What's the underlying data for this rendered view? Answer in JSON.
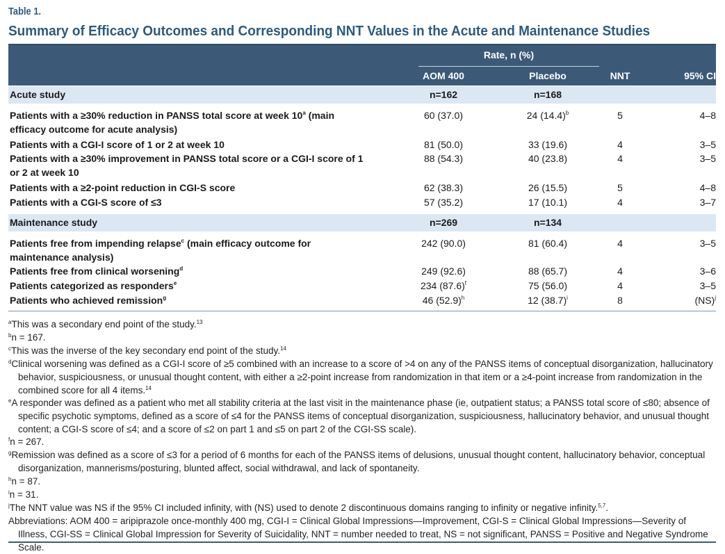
{
  "table_label": "Table 1.",
  "title": "Summary of Efficacy Outcomes and Corresponding NNT Values in the Acute and Maintenance Studies",
  "header": {
    "rate": "Rate, n (%)",
    "aom": "AOM 400",
    "placebo": "Placebo",
    "nnt": "NNT",
    "ci": "95% CI"
  },
  "acute": {
    "title": "Acute study",
    "n_aom": "n=162",
    "n_placebo": "n=168",
    "rows": [
      {
        "label": "Patients with a ≥30% reduction in PANSS total score at week 10",
        "sup": "a",
        "label2": " (main efficacy outcome for acute analysis)",
        "aom": "60 (37.0)",
        "placebo": "24 (14.4)",
        "placebo_sup": "b",
        "nnt": "5",
        "ci": "4–8"
      },
      {
        "label": "Patients with a CGI-I score of 1 or 2 at week 10",
        "aom": "81 (50.0)",
        "placebo": "33 (19.6)",
        "nnt": "4",
        "ci": "3–5"
      },
      {
        "label": "Patients with a ≥30% improvement in PANSS total score or a CGI-I score of 1 or 2 at week 10",
        "aom": "88 (54.3)",
        "placebo": "40 (23.8)",
        "nnt": "4",
        "ci": "3–5"
      },
      {
        "label": "Patients with a ≥2-point reduction in CGI-S score",
        "aom": "62 (38.3)",
        "placebo": "26 (15.5)",
        "nnt": "5",
        "ci": "4–8"
      },
      {
        "label": "Patients with a CGI-S score of ≤3",
        "aom": "57 (35.2)",
        "placebo": "17 (10.1)",
        "nnt": "4",
        "ci": "3–7"
      }
    ]
  },
  "maintenance": {
    "title": "Maintenance study",
    "n_aom": "n=269",
    "n_placebo": "n=134",
    "rows": [
      {
        "label": "Patients free from impending relapse",
        "sup": "c",
        "label2": " (main efficacy outcome for maintenance analysis)",
        "aom": "242 (90.0)",
        "placebo": "81 (60.4)",
        "nnt": "4",
        "ci": "3–5"
      },
      {
        "label": "Patients free from clinical worsening",
        "sup": "d",
        "aom": "249 (92.6)",
        "placebo": "88 (65.7)",
        "nnt": "4",
        "ci": "3–6"
      },
      {
        "label": "Patients categorized as responders",
        "sup": "e",
        "aom": "234 (87.6)",
        "aom_sup": "f",
        "placebo": "75 (56.0)",
        "nnt": "4",
        "ci": "3–5"
      },
      {
        "label": "Patients who achieved remission",
        "sup": "g",
        "aom": "46 (52.9)",
        "aom_sup": "h",
        "placebo": "12 (38.7)",
        "placebo_sup": "i",
        "nnt": "8",
        "ci": "(NS)",
        "ci_sup": "j"
      }
    ]
  },
  "footnotes": [
    {
      "mark": "a",
      "text": "This was a secondary end point of the study.",
      "ref": "13"
    },
    {
      "mark": "b",
      "text": "n = 167."
    },
    {
      "mark": "c",
      "text": "This was the inverse of the key secondary end point of the study.",
      "ref": "14"
    },
    {
      "mark": "d",
      "text": "Clinical worsening was defined as a CGI-I score of ≥5 combined with an increase to a score of >4 on any of the PANSS items of conceptual disorganization, hallucinatory behavior, suspiciousness, or unusual thought content, with either a ≥2-point increase from randomization in that item or a ≥4-point increase from randomization in the combined score for all 4 items.",
      "ref": "14"
    },
    {
      "mark": "e",
      "text": "A responder was defined as a patient who met all stability criteria at the last visit in the maintenance phase (ie, outpatient status; a PANSS total score of ≤80; absence of specific psychotic symptoms, defined as a score of ≤4 for the PANSS items of conceptual disorganization, suspiciousness, hallucinatory behavior, and unusual thought content; a CGI-S score of ≤4; and a score of ≤2 on part 1 and ≤5 on part 2 of the CGI-SS scale)."
    },
    {
      "mark": "f",
      "text": "n = 267."
    },
    {
      "mark": "g",
      "text": "Remission was defined as a score of ≤3 for a period of 6 months for each of the PANSS items of delusions, unusual thought content, hallucinatory behavior, conceptual disorganization, mannerisms/posturing, blunted affect, social withdrawal, and lack of spontaneity."
    },
    {
      "mark": "h",
      "text": "n = 87."
    },
    {
      "mark": "i",
      "text": "n = 31."
    },
    {
      "mark": "j",
      "text": "The NNT value was NS if the 95% CI included infinity, with (NS) used to denote 2 discontinuous domains ranging to infinity or negative infinity.",
      "ref": "5,7",
      "tail": "."
    }
  ],
  "abbreviations": "Abbreviations: AOM 400 = aripiprazole once-monthly 400 mg, CGI-I = Clinical Global Impressions—Improvement, CGI-S = Clinical Global Impressions—Severity of Illness, CGI-SS = Clinical Global Impression for Severity of Suicidality, NNT = number needed to treat, NS = not significant, PANSS = Positive and Negative Syndrome Scale."
}
